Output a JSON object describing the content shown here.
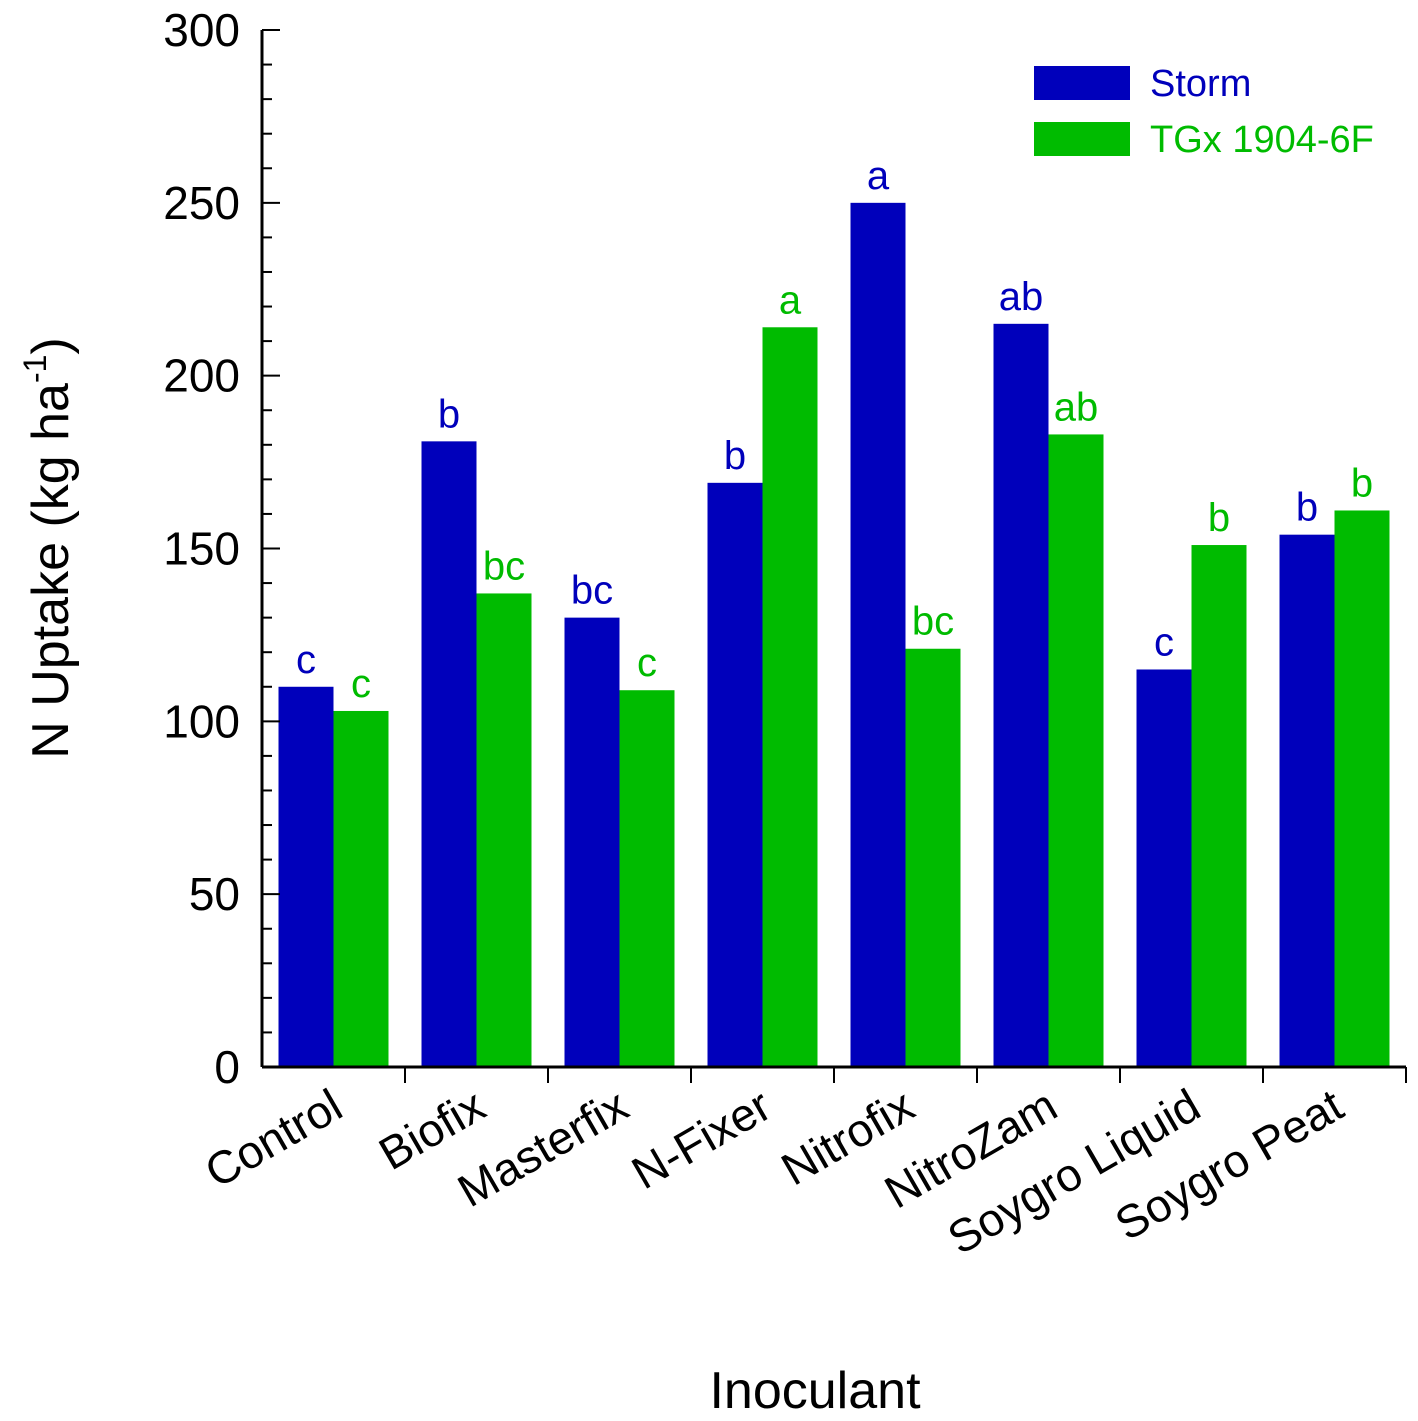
{
  "chart_data": {
    "type": "bar",
    "title": "",
    "xlabel": "Inoculant",
    "ylabel": "N Uptake (kg ha",
    "ylabel_superscript": "-1",
    "ylabel_close": ")",
    "ylim": [
      0,
      300
    ],
    "yticks": [
      0,
      50,
      100,
      150,
      200,
      250,
      300
    ],
    "grid": false,
    "legend_position": "top-right",
    "categories": [
      "Control",
      "Biofix",
      "Masterfix",
      "N-Fixer",
      "Nitrofix",
      "NitroZam",
      "Soygro Liquid",
      "Soygro Peat"
    ],
    "series": [
      {
        "name": "Storm",
        "color": "#0000bb",
        "values": [
          110,
          181,
          130,
          169,
          250,
          215,
          115,
          154
        ],
        "labels": [
          "c",
          "b",
          "bc",
          "b",
          "a",
          "ab",
          "c",
          "b"
        ]
      },
      {
        "name": "TGx 1904-6F",
        "color": "#00bb00",
        "values": [
          103,
          137,
          109,
          214,
          121,
          183,
          151,
          161
        ],
        "labels": [
          "c",
          "bc",
          "c",
          "a",
          "bc",
          "ab",
          "b",
          "b"
        ]
      }
    ]
  }
}
